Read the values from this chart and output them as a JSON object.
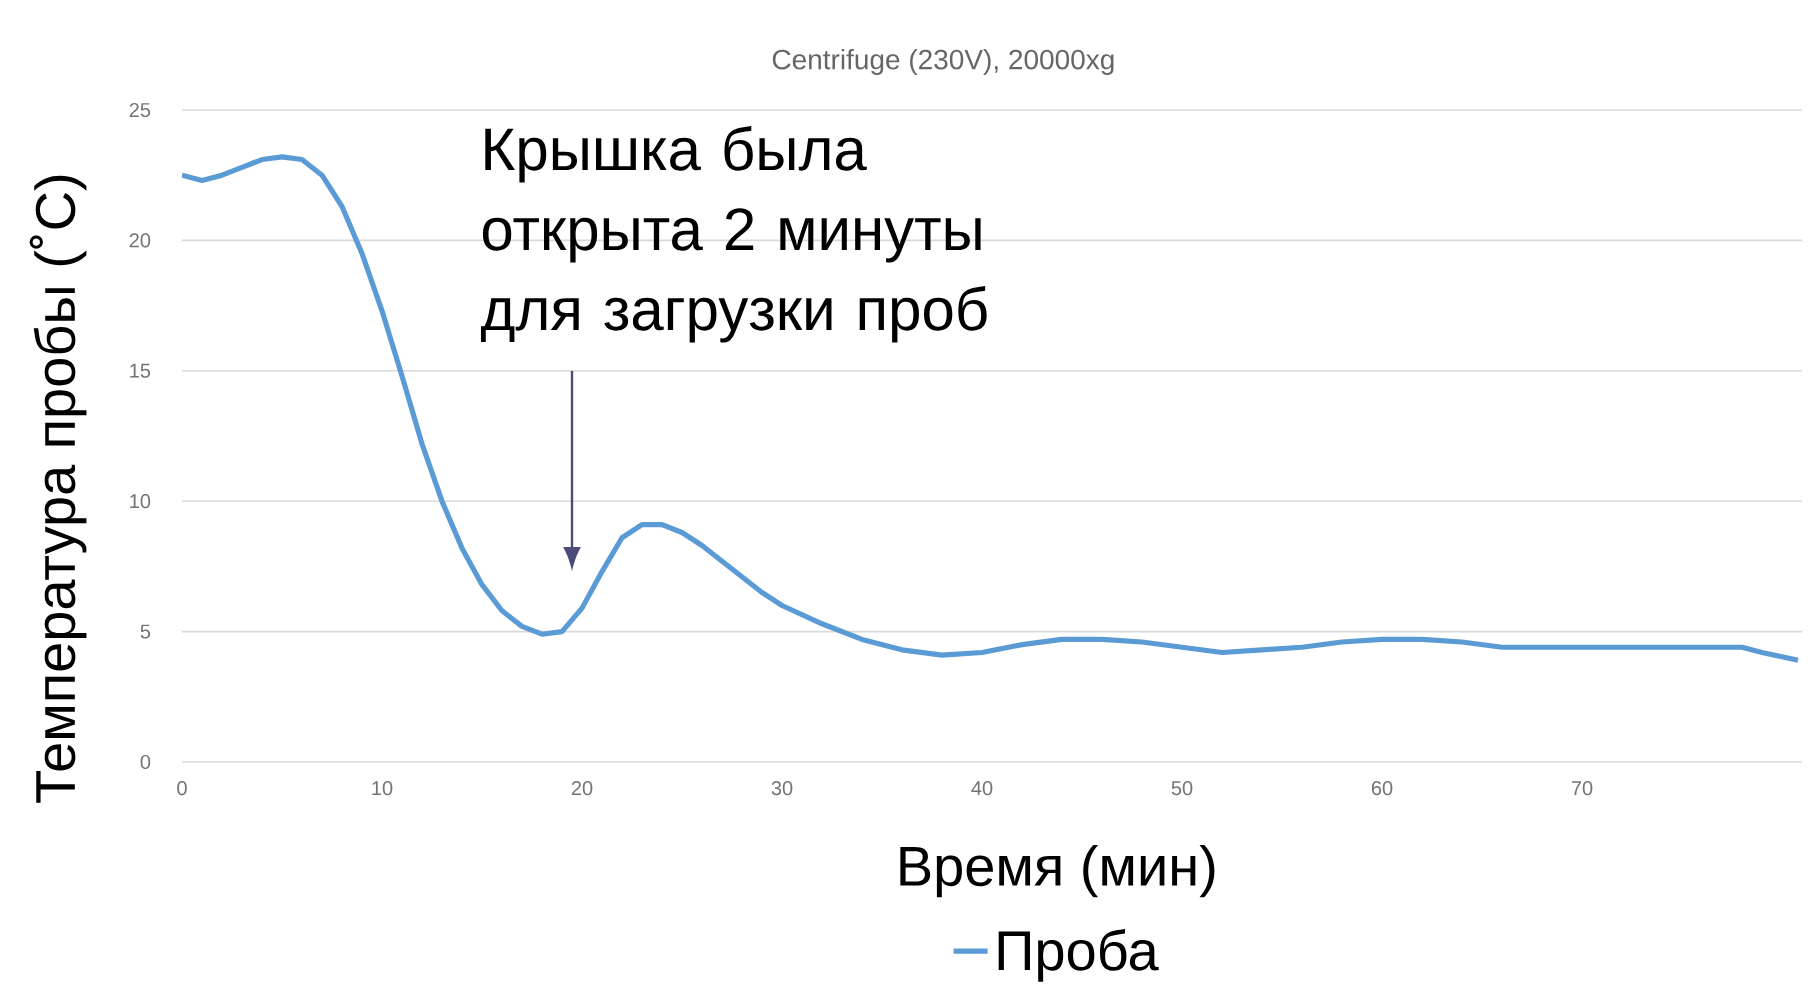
{
  "chart_data": {
    "type": "line",
    "title": "Centrifuge (230V), 20000xg",
    "xlabel": "Время (мин)",
    "ylabel": "Температура пробы (˚C)",
    "x": [
      0,
      1,
      2,
      3,
      4,
      5,
      6,
      7,
      8,
      9,
      10,
      11,
      12,
      13,
      14,
      15,
      16,
      17,
      18,
      19,
      20,
      21,
      22,
      23,
      24,
      25,
      26,
      27,
      28,
      29,
      30,
      32,
      34,
      36,
      38,
      40,
      42,
      44,
      46,
      48,
      50,
      52,
      54,
      56,
      58,
      60,
      62,
      64,
      66,
      70,
      75,
      78,
      79,
      80.8
    ],
    "series": [
      {
        "name": "Проба",
        "color": "#5b9bd5",
        "values": [
          22.5,
          22.3,
          22.5,
          22.8,
          23.1,
          23.2,
          23.1,
          22.5,
          21.3,
          19.5,
          17.3,
          14.8,
          12.2,
          10.0,
          8.2,
          6.8,
          5.8,
          5.2,
          4.9,
          5.0,
          5.9,
          7.3,
          8.6,
          9.1,
          9.1,
          8.8,
          8.3,
          7.7,
          7.1,
          6.5,
          6.0,
          5.3,
          4.7,
          4.3,
          4.1,
          4.2,
          4.5,
          4.7,
          4.7,
          4.6,
          4.4,
          4.2,
          4.3,
          4.4,
          4.6,
          4.7,
          4.7,
          4.6,
          4.4,
          4.4,
          4.4,
          4.4,
          4.2,
          3.9
        ]
      }
    ],
    "xlim": [
      0,
      81
    ],
    "ylim": [
      0,
      25
    ],
    "xticks": [
      0,
      10,
      20,
      30,
      40,
      50,
      60,
      70
    ],
    "yticks": [
      0,
      5,
      10,
      15,
      20,
      25
    ],
    "grid": "y",
    "legend": "bottom",
    "marker": "none",
    "line_style": "solid",
    "annotations": [
      "Крышка была открыта 2 минуты для загрузки проб"
    ]
  }
}
